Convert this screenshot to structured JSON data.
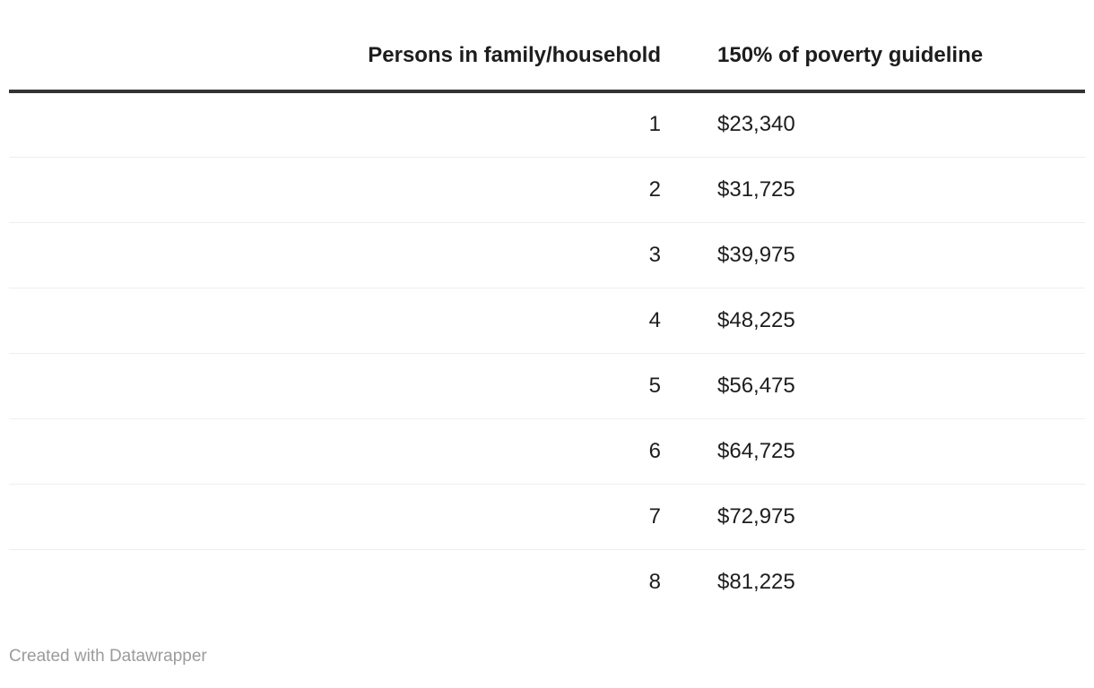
{
  "table": {
    "columns": [
      {
        "label": "Persons in family/household",
        "align": "right"
      },
      {
        "label": "150% of poverty guideline",
        "align": "left"
      }
    ],
    "rows": [
      {
        "persons": "1",
        "guideline": "$23,340"
      },
      {
        "persons": "2",
        "guideline": "$31,725"
      },
      {
        "persons": "3",
        "guideline": "$39,975"
      },
      {
        "persons": "4",
        "guideline": "$48,225"
      },
      {
        "persons": "5",
        "guideline": "$56,475"
      },
      {
        "persons": "6",
        "guideline": "$64,725"
      },
      {
        "persons": "7",
        "guideline": "$72,975"
      },
      {
        "persons": "8",
        "guideline": "$81,225"
      }
    ]
  },
  "footer": {
    "attribution": "Created with Datawrapper"
  },
  "colors": {
    "background": "#ffffff",
    "text": "#1d1d1d",
    "header_rule": "#333333",
    "row_divider": "#eeeeee",
    "footer_text": "#9b9b9b"
  },
  "chart_data": {
    "type": "table",
    "title": "",
    "columns": [
      "Persons in family/household",
      "150% of poverty guideline"
    ],
    "rows": [
      [
        1,
        "$23,340"
      ],
      [
        2,
        "$31,725"
      ],
      [
        3,
        "$39,975"
      ],
      [
        4,
        "$48,225"
      ],
      [
        5,
        "$56,475"
      ],
      [
        6,
        "$64,725"
      ],
      [
        7,
        "$72,975"
      ],
      [
        8,
        "$81,225"
      ]
    ],
    "attribution": "Created with Datawrapper",
    "layout": {
      "header_rule": "thick dark line under header",
      "row_dividers": "thin light gray, none after last row",
      "column_alignments": [
        "right",
        "left"
      ]
    }
  }
}
